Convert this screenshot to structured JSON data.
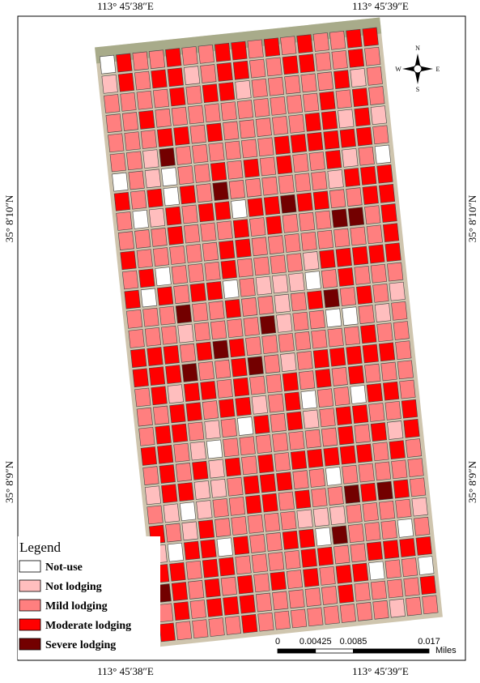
{
  "labels": {
    "top": [
      "113° 45′38″E",
      "113° 45′39″E"
    ],
    "bottom": [
      "113° 45′38″E",
      "113° 45′39″E"
    ],
    "left": [
      "35° 8′10″N",
      "35° 8′9″N"
    ],
    "right": [
      "35° 8′10″N",
      "35° 8′9″N"
    ]
  },
  "north_arrow": {
    "n": "N",
    "s": "S",
    "e": "E",
    "w": "W"
  },
  "legend": {
    "title": "Legend",
    "items": [
      {
        "label": "Not-use",
        "color": "#ffffff"
      },
      {
        "label": "Not lodging",
        "color": "#ffbebe"
      },
      {
        "label": "Mild lodging",
        "color": "#ff7f7f"
      },
      {
        "label": "Moderate lodging",
        "color": "#ff0000"
      },
      {
        "label": "Severe lodging",
        "color": "#730000"
      }
    ]
  },
  "scale_bar": {
    "ticks": [
      0,
      0.00425,
      0.0085,
      0.017
    ],
    "unit": "Miles"
  }
}
